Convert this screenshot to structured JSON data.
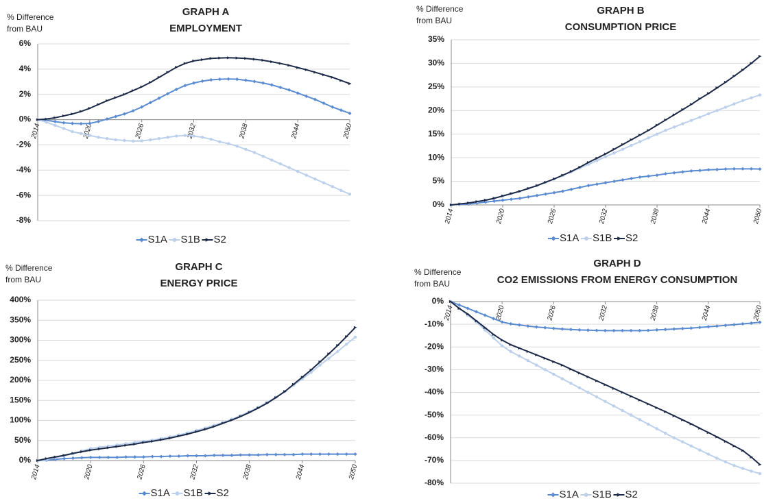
{
  "chart_data": [
    {
      "type": "line",
      "title": "GRAPH A",
      "subtitle": "EMPLOYMENT",
      "y_label": [
        "% Difference",
        "from BAU"
      ],
      "grid": true,
      "legend": "bottom",
      "x": [
        2014,
        2015,
        2016,
        2017,
        2018,
        2019,
        2020,
        2021,
        2022,
        2023,
        2024,
        2025,
        2026,
        2027,
        2028,
        2029,
        2030,
        2031,
        2032,
        2033,
        2034,
        2035,
        2036,
        2037,
        2038,
        2039,
        2040,
        2041,
        2042,
        2043,
        2044,
        2045,
        2046,
        2047,
        2048,
        2049,
        2050
      ],
      "xlim": [
        2014,
        2050
      ],
      "xticks": [
        2014,
        2020,
        2026,
        2032,
        2038,
        2044,
        2050
      ],
      "ylim": [
        -8,
        6
      ],
      "yticks": [
        {
          "value": -8,
          "label": "-8%"
        },
        {
          "value": -6,
          "label": "-6%"
        },
        {
          "value": -4,
          "label": "-4%"
        },
        {
          "value": -2,
          "label": "-2%"
        },
        {
          "value": 0,
          "label": "0%"
        },
        {
          "value": 2,
          "label": "2%"
        },
        {
          "value": 4,
          "label": "4%"
        },
        {
          "value": 6,
          "label": "6%"
        }
      ],
      "series": [
        {
          "name": "S1A",
          "color": "#5a8bd0",
          "marker": "diamond",
          "values": [
            0,
            -0.05,
            -0.15,
            -0.25,
            -0.3,
            -0.32,
            -0.3,
            -0.15,
            0.05,
            0.25,
            0.45,
            0.7,
            1.0,
            1.35,
            1.7,
            2.05,
            2.4,
            2.7,
            2.9,
            3.05,
            3.15,
            3.2,
            3.22,
            3.2,
            3.12,
            3.02,
            2.9,
            2.75,
            2.55,
            2.35,
            2.1,
            1.85,
            1.6,
            1.3,
            1.0,
            0.75,
            0.5
          ]
        },
        {
          "name": "S1B",
          "color": "#bcd0ec",
          "marker": "circle",
          "values": [
            0,
            -0.2,
            -0.45,
            -0.7,
            -0.95,
            -1.1,
            -1.25,
            -1.4,
            -1.5,
            -1.6,
            -1.65,
            -1.7,
            -1.68,
            -1.6,
            -1.5,
            -1.4,
            -1.3,
            -1.25,
            -1.3,
            -1.4,
            -1.55,
            -1.75,
            -1.9,
            -2.1,
            -2.35,
            -2.6,
            -2.9,
            -3.2,
            -3.5,
            -3.8,
            -4.1,
            -4.4,
            -4.7,
            -5.0,
            -5.3,
            -5.6,
            -5.9
          ]
        },
        {
          "name": "S2",
          "color": "#1c2a48",
          "marker": "triangle",
          "values": [
            0,
            0.05,
            0.15,
            0.3,
            0.45,
            0.65,
            0.9,
            1.2,
            1.5,
            1.75,
            2.0,
            2.3,
            2.6,
            2.95,
            3.35,
            3.75,
            4.15,
            4.45,
            4.65,
            4.75,
            4.85,
            4.88,
            4.9,
            4.88,
            4.85,
            4.78,
            4.7,
            4.58,
            4.45,
            4.3,
            4.12,
            3.95,
            3.75,
            3.55,
            3.35,
            3.1,
            2.85
          ]
        }
      ]
    },
    {
      "type": "line",
      "title": "GRAPH B",
      "subtitle": "CONSUMPTION PRICE",
      "y_label": [
        "% Difference",
        "from BAU"
      ],
      "grid": true,
      "legend": "bottom",
      "x": [
        2014,
        2015,
        2016,
        2017,
        2018,
        2019,
        2020,
        2021,
        2022,
        2023,
        2024,
        2025,
        2026,
        2027,
        2028,
        2029,
        2030,
        2031,
        2032,
        2033,
        2034,
        2035,
        2036,
        2037,
        2038,
        2039,
        2040,
        2041,
        2042,
        2043,
        2044,
        2045,
        2046,
        2047,
        2048,
        2049,
        2050
      ],
      "xlim": [
        2014,
        2050
      ],
      "xticks": [
        2014,
        2020,
        2026,
        2032,
        2038,
        2044,
        2050
      ],
      "ylim": [
        0,
        35
      ],
      "yticks": [
        {
          "value": 0,
          "label": "0%"
        },
        {
          "value": 5,
          "label": "5%"
        },
        {
          "value": 10,
          "label": "10%"
        },
        {
          "value": 15,
          "label": "15%"
        },
        {
          "value": 20,
          "label": "20%"
        },
        {
          "value": 25,
          "label": "25%"
        },
        {
          "value": 30,
          "label": "30%"
        },
        {
          "value": 35,
          "label": "35%"
        }
      ],
      "series": [
        {
          "name": "S1A",
          "color": "#5a8bd0",
          "marker": "diamond",
          "values": [
            0,
            0.1,
            0.2,
            0.4,
            0.6,
            0.8,
            1.0,
            1.2,
            1.4,
            1.7,
            2.0,
            2.3,
            2.6,
            2.9,
            3.3,
            3.7,
            4.1,
            4.4,
            4.7,
            5.0,
            5.3,
            5.6,
            5.9,
            6.1,
            6.3,
            6.6,
            6.8,
            7.0,
            7.2,
            7.3,
            7.45,
            7.5,
            7.6,
            7.65,
            7.65,
            7.65,
            7.6
          ]
        },
        {
          "name": "S1B",
          "color": "#bcd0ec",
          "marker": "circle",
          "values": [
            0,
            0.2,
            0.4,
            0.7,
            1.0,
            1.4,
            1.9,
            2.4,
            2.9,
            3.5,
            4.1,
            4.8,
            5.5,
            6.2,
            7.0,
            7.8,
            8.6,
            9.4,
            10.2,
            11.0,
            11.8,
            12.6,
            13.4,
            14.2,
            15.0,
            15.8,
            16.5,
            17.2,
            17.9,
            18.6,
            19.3,
            20.0,
            20.7,
            21.4,
            22.1,
            22.7,
            23.3
          ]
        },
        {
          "name": "S2",
          "color": "#1c2a48",
          "marker": "triangle",
          "values": [
            0,
            0.2,
            0.4,
            0.7,
            1.0,
            1.4,
            1.9,
            2.4,
            2.9,
            3.5,
            4.1,
            4.8,
            5.5,
            6.3,
            7.1,
            8.0,
            9.0,
            9.9,
            10.8,
            11.8,
            12.8,
            13.8,
            14.8,
            15.8,
            16.9,
            18.0,
            19.1,
            20.2,
            21.3,
            22.5,
            23.6,
            24.8,
            26.0,
            27.3,
            28.6,
            30.0,
            31.5
          ]
        }
      ]
    },
    {
      "type": "line",
      "title": "GRAPH C",
      "subtitle": "ENERGY PRICE",
      "y_label": [
        "% Difference",
        "from BAU"
      ],
      "grid": true,
      "legend": "bottom",
      "x": [
        2014,
        2015,
        2016,
        2017,
        2018,
        2019,
        2020,
        2021,
        2022,
        2023,
        2024,
        2025,
        2026,
        2027,
        2028,
        2029,
        2030,
        2031,
        2032,
        2033,
        2034,
        2035,
        2036,
        2037,
        2038,
        2039,
        2040,
        2041,
        2042,
        2043,
        2044,
        2045,
        2046,
        2047,
        2048,
        2049,
        2050
      ],
      "xlim": [
        2014,
        2050
      ],
      "xticks": [
        2014,
        2020,
        2026,
        2032,
        2038,
        2044,
        2050
      ],
      "ylim": [
        0,
        400
      ],
      "yticks": [
        {
          "value": 0,
          "label": "0%"
        },
        {
          "value": 50,
          "label": "50%"
        },
        {
          "value": 100,
          "label": "100%"
        },
        {
          "value": 150,
          "label": "150%"
        },
        {
          "value": 200,
          "label": "200%"
        },
        {
          "value": 250,
          "label": "250%"
        },
        {
          "value": 300,
          "label": "300%"
        },
        {
          "value": 350,
          "label": "350%"
        },
        {
          "value": 400,
          "label": "400%"
        }
      ],
      "series": [
        {
          "name": "S1A",
          "color": "#5a8bd0",
          "marker": "diamond",
          "values": [
            0,
            1,
            3,
            5,
            6,
            7,
            8,
            8,
            8,
            8,
            9,
            9,
            9,
            10,
            10,
            11,
            11,
            12,
            12,
            12,
            13,
            13,
            13,
            14,
            14,
            14,
            15,
            15,
            15,
            15,
            16,
            16,
            16,
            16,
            16,
            16,
            16
          ]
        },
        {
          "name": "S1B",
          "color": "#bcd0ec",
          "marker": "circle",
          "values": [
            0,
            3,
            7,
            12,
            17,
            24,
            30,
            33,
            36,
            39,
            42,
            45,
            48,
            51,
            55,
            59,
            64,
            69,
            75,
            81,
            88,
            95,
            103,
            112,
            122,
            133,
            145,
            158,
            172,
            188,
            204,
            220,
            238,
            255,
            272,
            290,
            308
          ]
        },
        {
          "name": "S2",
          "color": "#1c2a48",
          "marker": "triangle",
          "values": [
            0,
            5,
            9,
            13,
            18,
            22,
            26,
            29,
            32,
            35,
            38,
            41,
            45,
            48,
            52,
            56,
            61,
            66,
            72,
            78,
            85,
            93,
            101,
            110,
            120,
            131,
            143,
            157,
            172,
            190,
            208,
            226,
            246,
            266,
            287,
            309,
            332
          ]
        }
      ]
    },
    {
      "type": "line",
      "title": "GRAPH D",
      "subtitle": "CO2 EMISSIONS FROM ENERGY CONSUMPTION",
      "y_label": [
        "% Difference",
        "from BAU"
      ],
      "grid": true,
      "legend": "bottom",
      "x": [
        2014,
        2015,
        2016,
        2017,
        2018,
        2019,
        2020,
        2021,
        2022,
        2023,
        2024,
        2025,
        2026,
        2027,
        2028,
        2029,
        2030,
        2031,
        2032,
        2033,
        2034,
        2035,
        2036,
        2037,
        2038,
        2039,
        2040,
        2041,
        2042,
        2043,
        2044,
        2045,
        2046,
        2047,
        2048,
        2049,
        2050
      ],
      "xlim": [
        2014,
        2050
      ],
      "xticks": [
        2014,
        2020,
        2026,
        2032,
        2038,
        2044,
        2050
      ],
      "ylim": [
        -80,
        0
      ],
      "yticks": [
        {
          "value": -80,
          "label": "-80%"
        },
        {
          "value": -70,
          "label": "-70%"
        },
        {
          "value": -60,
          "label": "-60%"
        },
        {
          "value": -50,
          "label": "-50%"
        },
        {
          "value": -40,
          "label": "-40%"
        },
        {
          "value": -30,
          "label": "-30%"
        },
        {
          "value": -20,
          "label": "-20%"
        },
        {
          "value": -10,
          "label": "-10%"
        },
        {
          "value": 0,
          "label": "0%"
        }
      ],
      "series": [
        {
          "name": "S1A",
          "color": "#5a8bd0",
          "marker": "diamond",
          "values": [
            0,
            -1.5,
            -3,
            -4.5,
            -6,
            -7.5,
            -9,
            -9.8,
            -10.3,
            -10.8,
            -11.2,
            -11.5,
            -11.8,
            -12.1,
            -12.3,
            -12.5,
            -12.6,
            -12.7,
            -12.8,
            -12.8,
            -12.8,
            -12.8,
            -12.8,
            -12.7,
            -12.5,
            -12.3,
            -12.1,
            -11.9,
            -11.7,
            -11.4,
            -11.1,
            -10.8,
            -10.5,
            -10.2,
            -9.8,
            -9.5,
            -9.1
          ]
        },
        {
          "name": "S1B",
          "color": "#bcd0ec",
          "marker": "circle",
          "values": [
            0,
            -3,
            -6,
            -9,
            -12.5,
            -16,
            -19.5,
            -22,
            -24,
            -26,
            -28,
            -30,
            -32,
            -34,
            -36,
            -38,
            -40,
            -42,
            -44,
            -46,
            -48,
            -50,
            -52,
            -54,
            -56,
            -58,
            -60,
            -61.8,
            -63.6,
            -65.4,
            -67.2,
            -69,
            -70.6,
            -72.2,
            -73.5,
            -74.7,
            -75.8
          ]
        },
        {
          "name": "S2",
          "color": "#1c2a48",
          "marker": "triangle",
          "values": [
            0,
            -3,
            -5.5,
            -8.5,
            -11.5,
            -14.5,
            -17,
            -19,
            -20.5,
            -22,
            -23.5,
            -25,
            -26.5,
            -28,
            -29.8,
            -31.5,
            -33.2,
            -34.9,
            -36.6,
            -38.3,
            -40,
            -41.7,
            -43.4,
            -45.1,
            -46.8,
            -48.5,
            -50.3,
            -52.1,
            -53.9,
            -55.8,
            -57.7,
            -59.6,
            -61.6,
            -63.6,
            -65.6,
            -68.5,
            -71.8
          ]
        }
      ]
    }
  ]
}
